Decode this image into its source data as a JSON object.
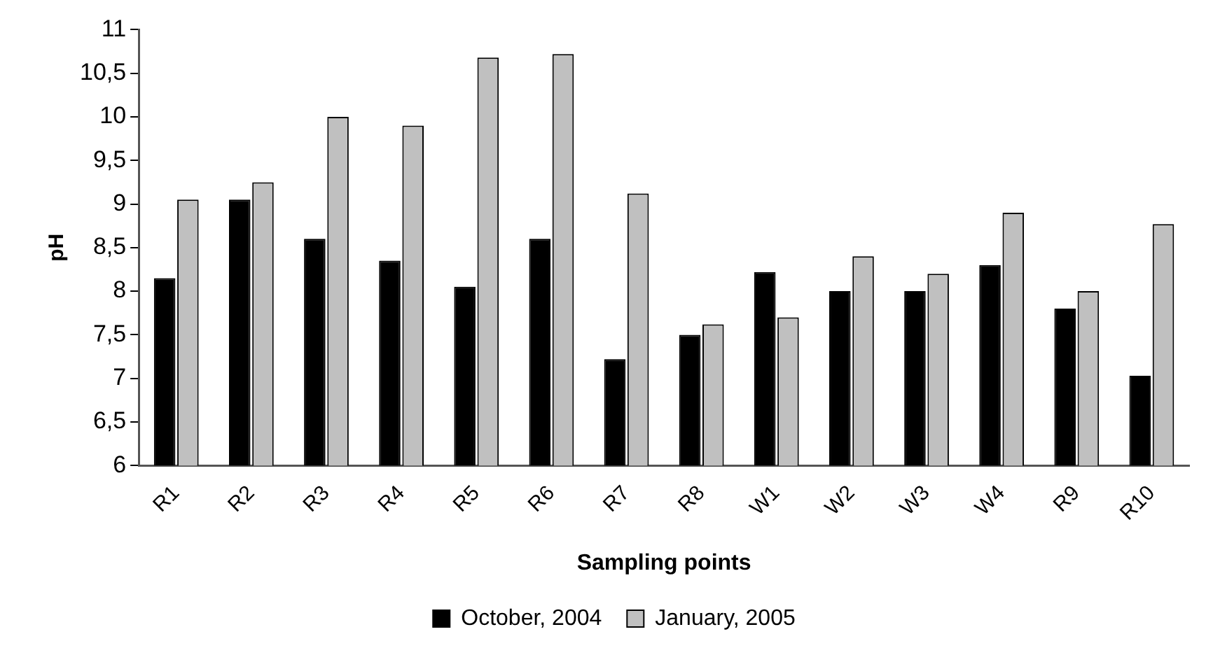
{
  "chart_data": {
    "type": "bar",
    "xlabel": "Sampling points",
    "ylabel": "pH",
    "categories": [
      "R1",
      "R2",
      "R3",
      "R4",
      "R5",
      "R6",
      "R7",
      "R8",
      "W1",
      "W2",
      "W3",
      "W4",
      "R9",
      "R10"
    ],
    "series": [
      {
        "name": "October, 2004",
        "color": "#000000",
        "values": [
          8.15,
          9.05,
          8.6,
          8.35,
          8.05,
          8.6,
          7.22,
          7.5,
          8.22,
          8.0,
          8.0,
          8.3,
          7.8,
          7.03
        ]
      },
      {
        "name": "January, 2005",
        "color": "#c0c0c0",
        "values": [
          9.05,
          9.25,
          10.0,
          9.9,
          10.68,
          10.72,
          9.12,
          7.62,
          7.7,
          8.4,
          8.2,
          8.9,
          8.0,
          8.77
        ]
      }
    ],
    "ylim": [
      6,
      11
    ],
    "yticks": [
      {
        "value": 6,
        "label": "6"
      },
      {
        "value": 6.5,
        "label": "6,5"
      },
      {
        "value": 7,
        "label": "7"
      },
      {
        "value": 7.5,
        "label": "7,5"
      },
      {
        "value": 8,
        "label": "8"
      },
      {
        "value": 8.5,
        "label": "8,5"
      },
      {
        "value": 9,
        "label": "9"
      },
      {
        "value": 9.5,
        "label": "9,5"
      },
      {
        "value": 10,
        "label": "10"
      },
      {
        "value": 10.5,
        "label": "10,5"
      },
      {
        "value": 11,
        "label": "11"
      }
    ],
    "grid": false,
    "legend": "bottom"
  }
}
